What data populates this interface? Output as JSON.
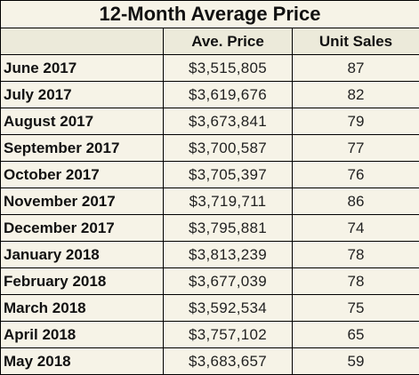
{
  "title": "12-Month Average Price",
  "headers": {
    "col1": "",
    "col2": "Ave. Price",
    "col3": "Unit Sales"
  },
  "rows": [
    {
      "month": "June 2017",
      "price": "$3,515,805",
      "sales": "87"
    },
    {
      "month": "July 2017",
      "price": "$3,619,676",
      "sales": "82"
    },
    {
      "month": "August 2017",
      "price": "$3,673,841",
      "sales": "79"
    },
    {
      "month": "September 2017",
      "price": "$3,700,587",
      "sales": "77"
    },
    {
      "month": "October 2017",
      "price": "$3,705,397",
      "sales": "76"
    },
    {
      "month": "November 2017",
      "price": "$3,719,711",
      "sales": "86"
    },
    {
      "month": "December 2017",
      "price": "$3,795,881",
      "sales": "74"
    },
    {
      "month": "January 2018",
      "price": "$3,813,239",
      "sales": "78"
    },
    {
      "month": "February 2018",
      "price": "$3,677,039",
      "sales": "78"
    },
    {
      "month": "March 2018",
      "price": "$3,592,534",
      "sales": "75"
    },
    {
      "month": "April 2018",
      "price": "$3,757,102",
      "sales": "65"
    },
    {
      "month": "May 2018",
      "price": "$3,683,657",
      "sales": "59"
    }
  ],
  "colors": {
    "background": "#f6f3e7",
    "header_background": "#eceada",
    "border": "#000000"
  }
}
